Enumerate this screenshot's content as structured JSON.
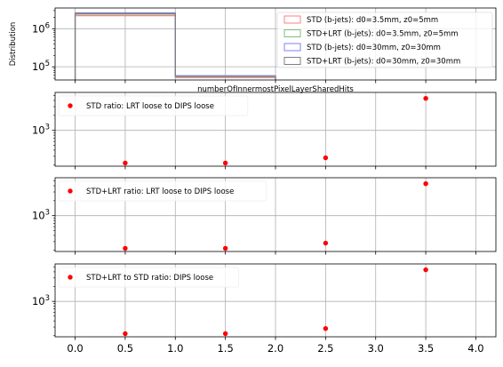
{
  "chart_data": [
    {
      "type": "step",
      "ylabel": "Distribution",
      "xlabel": "numberOfInnermostPixelLayerSharedHits",
      "yscale": "log",
      "ylim": [
        45000,
        3500000
      ],
      "ytick_labels": [
        "10^6",
        "10^5"
      ],
      "bin_edges": [
        0,
        1,
        2
      ],
      "series": [
        {
          "name": "STD (b-jets): d0=3.5mm, z0=5mm",
          "color": "#ff7f7f",
          "values": [
            2200000,
            52000
          ]
        },
        {
          "name": "STD+LRT (b-jets): d0=3.5mm, z0=5mm",
          "color": "#7fbf7f",
          "values": [
            2400000,
            55000
          ]
        },
        {
          "name": "STD (b-jets): d0=30mm, z0=30mm",
          "color": "#7f7fff",
          "values": [
            2600000,
            58000
          ]
        },
        {
          "name": "STD+LRT (b-jets): d0=30mm, z0=30mm",
          "color": "#7f7f7f",
          "values": [
            2500000,
            56000
          ]
        }
      ],
      "grid": true,
      "legend_position": "top-right"
    },
    {
      "type": "scatter",
      "yscale": "log",
      "ylim": [
        190,
        5800
      ],
      "ytick_labels": [
        "10^3"
      ],
      "series": [
        {
          "name": "STD ratio: LRT loose to DIPS loose",
          "color": "#ff0000",
          "x": [
            0.5,
            1.5,
            2.5,
            3.5
          ],
          "y": [
            220,
            220,
            280,
            4400
          ]
        }
      ],
      "grid": true,
      "legend_position": "top-left"
    },
    {
      "type": "scatter",
      "yscale": "log",
      "ylim": [
        190,
        5800
      ],
      "ytick_labels": [
        "10^3"
      ],
      "series": [
        {
          "name": "STD+LRT ratio: LRT loose to DIPS loose",
          "color": "#ff0000",
          "x": [
            0.5,
            1.5,
            2.5,
            3.5
          ],
          "y": [
            220,
            220,
            280,
            4400
          ]
        }
      ],
      "grid": true,
      "legend_position": "top-left"
    },
    {
      "type": "scatter",
      "yscale": "log",
      "ylim": [
        190,
        5800
      ],
      "ytick_labels": [
        "10^3"
      ],
      "xlim": [
        -0.2,
        4.2
      ],
      "x_ticks": [
        0.0,
        0.5,
        1.0,
        1.5,
        2.0,
        2.5,
        3.0,
        3.5,
        4.0
      ],
      "x_tick_labels": [
        "0.0",
        "0.5",
        "1.0",
        "1.5",
        "2.0",
        "2.5",
        "3.0",
        "3.5",
        "4.0"
      ],
      "series": [
        {
          "name": "STD+LRT to STD ratio: DIPS loose",
          "color": "#ff0000",
          "x": [
            0.5,
            1.5,
            2.5,
            3.5
          ],
          "y": [
            220,
            220,
            280,
            4400
          ]
        }
      ],
      "grid": true,
      "legend_position": "top-left"
    }
  ]
}
